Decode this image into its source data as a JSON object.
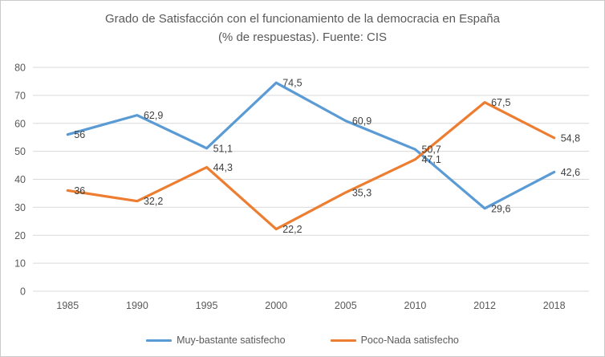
{
  "chart_data": {
    "type": "line",
    "title_line1": "Grado de Satisfacción con el funcionamiento de la democracia en España",
    "title_line2": "(% de respuestas). Fuente: CIS",
    "categories": [
      "1985",
      "1990",
      "1995",
      "2000",
      "2005",
      "2010",
      "2012",
      "2018"
    ],
    "series": [
      {
        "name": "Muy-bastante satisfecho",
        "color": "#5B9BD5",
        "values": [
          56,
          62.9,
          51.1,
          74.5,
          60.9,
          50.7,
          29.6,
          42.6
        ],
        "labels": [
          "56",
          "62,9",
          "51,1",
          "74,5",
          "60,9",
          "50,7",
          "29,6",
          "42,6"
        ]
      },
      {
        "name": "Poco-Nada satisfecho",
        "color": "#ED7D31",
        "values": [
          36,
          32.2,
          44.3,
          22.2,
          35.3,
          47.1,
          67.5,
          54.8
        ],
        "labels": [
          "36",
          "32,2",
          "44,3",
          "22,2",
          "35,3",
          "47,1",
          "67,5",
          "54,8"
        ]
      }
    ],
    "y_axis": {
      "min": 0,
      "max": 80,
      "step": 10,
      "ticks": [
        "0",
        "10",
        "20",
        "30",
        "40",
        "50",
        "60",
        "70",
        "80"
      ]
    },
    "grid": true,
    "legend_position": "bottom",
    "colors": {
      "grid": "#D9D9D9",
      "axis_text": "#595959",
      "title_text": "#595959",
      "label_text": "#404040"
    }
  }
}
